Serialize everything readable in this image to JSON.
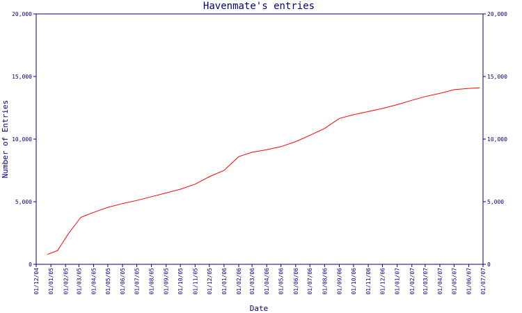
{
  "chart_data": {
    "type": "line",
    "title": "Havenmate's entries",
    "xlabel": "Date",
    "ylabel": "Number of Entries",
    "ylim": [
      0,
      20000
    ],
    "y_ticks": [
      {
        "value": 0,
        "label": "0"
      },
      {
        "value": 5000,
        "label": "5,000"
      },
      {
        "value": 10000,
        "label": "10,000"
      },
      {
        "value": 15000,
        "label": "15,000"
      },
      {
        "value": 20000,
        "label": "20,000"
      }
    ],
    "x_ticks": [
      "01/12/04",
      "01/01/05",
      "01/02/05",
      "01/03/05",
      "01/04/05",
      "01/05/05",
      "01/06/05",
      "01/07/05",
      "01/08/05",
      "01/09/05",
      "01/10/05",
      "01/11/05",
      "01/12/05",
      "01/01/06",
      "01/02/06",
      "01/03/06",
      "01/04/06",
      "01/05/06",
      "01/06/06",
      "01/07/06",
      "01/08/06",
      "01/09/06",
      "01/10/06",
      "01/11/06",
      "01/12/06",
      "01/01/07",
      "01/02/07",
      "01/03/07",
      "01/04/07",
      "01/05/07",
      "01/06/07",
      "01/07/07"
    ],
    "grid": false,
    "colors": {
      "axis": "#000080",
      "text": "#000080",
      "line": "#ff0000",
      "background": "#ffffff"
    },
    "series": [
      {
        "x": [
          "2004-12-25",
          "2005-01-15",
          "2005-02-08",
          "2005-03-05",
          "2005-04-01",
          "2005-05-01",
          "2005-06-01",
          "2005-07-01",
          "2005-08-01",
          "2005-09-01",
          "2005-10-01",
          "2005-11-01",
          "2005-12-01",
          "2006-01-01",
          "2006-02-01",
          "2006-03-01",
          "2006-04-01",
          "2006-05-01",
          "2006-06-01",
          "2006-07-01",
          "2006-08-01",
          "2006-09-01",
          "2006-10-01",
          "2006-11-01",
          "2006-12-01",
          "2007-01-01",
          "2007-02-01",
          "2007-03-01",
          "2007-04-01",
          "2007-05-01",
          "2007-06-01",
          "2007-06-24"
        ],
        "values": [
          800,
          1100,
          2500,
          3750,
          4150,
          4550,
          4850,
          5100,
          5400,
          5700,
          6000,
          6400,
          7000,
          7500,
          8600,
          8950,
          9150,
          9400,
          9800,
          10300,
          10850,
          11650,
          11950,
          12200,
          12450,
          12750,
          13100,
          13400,
          13650,
          13950,
          14050,
          14100
        ]
      }
    ]
  }
}
